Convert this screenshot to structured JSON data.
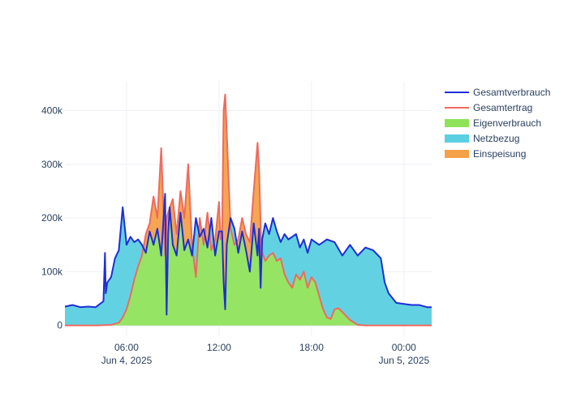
{
  "colors": {
    "gesamtverbrauch": "#1f2ed6",
    "gesamtertrag": "#ef6a5e",
    "eigenverbrauch": "#8fe35b",
    "netzbezug": "#5ad0e2",
    "einspeisung": "#f4a14a",
    "grid": "#eef0f5",
    "zero_line": "#d9dde6"
  },
  "chart_data": {
    "type": "area",
    "x_ticks": [
      {
        "hour": 6,
        "label": "06:00",
        "sublabel": "Jun 4, 2025"
      },
      {
        "hour": 12,
        "label": "12:00",
        "sublabel": ""
      },
      {
        "hour": 18,
        "label": "18:00",
        "sublabel": ""
      },
      {
        "hour": 24,
        "label": "00:00",
        "sublabel": "Jun 5, 2025"
      }
    ],
    "xlim_hours": [
      2,
      25.8
    ],
    "y_ticks": [
      {
        "value": 0,
        "label": "0"
      },
      {
        "value": 100000,
        "label": "100k"
      },
      {
        "value": 200000,
        "label": "200k"
      },
      {
        "value": 300000,
        "label": "300k"
      },
      {
        "value": 400000,
        "label": "400k"
      }
    ],
    "ylim": [
      -20000,
      455000
    ],
    "legend": [
      {
        "name": "Gesamtverbrauch",
        "kind": "line",
        "color_key": "gesamtverbrauch"
      },
      {
        "name": "Gesamtertrag",
        "kind": "line",
        "color_key": "gesamtertrag"
      },
      {
        "name": "Eigenverbrauch",
        "kind": "fill",
        "color_key": "eigenverbrauch"
      },
      {
        "name": "Netzbezug",
        "kind": "fill",
        "color_key": "netzbezug"
      },
      {
        "name": "Einspeisung",
        "kind": "fill",
        "color_key": "einspeisung"
      }
    ],
    "series": [
      {
        "name": "Gesamtverbrauch",
        "x": [
          2.0,
          2.5,
          3.0,
          3.5,
          4.0,
          4.5,
          4.6,
          4.65,
          4.75,
          5.0,
          5.25,
          5.5,
          5.75,
          6.0,
          6.25,
          6.5,
          6.75,
          7.0,
          7.25,
          7.5,
          7.75,
          8.0,
          8.25,
          8.5,
          8.6,
          8.7,
          8.8,
          9.0,
          9.25,
          9.5,
          9.75,
          10.0,
          10.25,
          10.5,
          10.75,
          11.0,
          11.25,
          11.5,
          11.75,
          12.0,
          12.2,
          12.3,
          12.4,
          12.5,
          12.75,
          13.0,
          13.25,
          13.5,
          13.75,
          14.0,
          14.25,
          14.5,
          14.6,
          14.7,
          14.8,
          15.0,
          15.25,
          15.5,
          15.75,
          16.0,
          16.25,
          16.5,
          16.75,
          17.0,
          17.25,
          17.5,
          17.75,
          18.0,
          18.5,
          19.0,
          19.5,
          20.0,
          20.5,
          21.0,
          21.5,
          22.0,
          22.5,
          22.75,
          23.0,
          23.5,
          24.0,
          24.5,
          25.0,
          25.5,
          25.8
        ],
        "y": [
          35000,
          38000,
          34000,
          35000,
          34000,
          45000,
          135000,
          60000,
          80000,
          90000,
          125000,
          140000,
          220000,
          150000,
          165000,
          155000,
          160000,
          150000,
          135000,
          175000,
          150000,
          180000,
          130000,
          245000,
          20000,
          170000,
          220000,
          150000,
          130000,
          210000,
          140000,
          160000,
          130000,
          200000,
          165000,
          180000,
          145000,
          200000,
          130000,
          175000,
          175000,
          80000,
          30000,
          150000,
          200000,
          180000,
          135000,
          175000,
          140000,
          100000,
          190000,
          130000,
          180000,
          70000,
          160000,
          190000,
          170000,
          200000,
          175000,
          155000,
          170000,
          160000,
          165000,
          170000,
          145000,
          160000,
          135000,
          160000,
          150000,
          160000,
          155000,
          130000,
          150000,
          130000,
          145000,
          140000,
          125000,
          80000,
          60000,
          42000,
          40000,
          38000,
          38000,
          34000,
          34000
        ],
        "color_key": "gesamtverbrauch",
        "kind": "line"
      },
      {
        "name": "Gesamtertrag",
        "x": [
          2.0,
          3.0,
          4.0,
          5.0,
          5.5,
          5.75,
          6.0,
          6.25,
          6.5,
          6.75,
          7.0,
          7.25,
          7.5,
          7.75,
          8.0,
          8.25,
          8.5,
          8.6,
          8.75,
          9.0,
          9.25,
          9.5,
          9.75,
          10.0,
          10.25,
          10.5,
          10.75,
          11.0,
          11.25,
          11.5,
          11.75,
          12.0,
          12.1,
          12.2,
          12.3,
          12.4,
          12.5,
          12.75,
          13.0,
          13.25,
          13.5,
          13.75,
          14.0,
          14.25,
          14.5,
          14.6,
          14.75,
          15.0,
          15.25,
          15.5,
          15.75,
          16.0,
          16.25,
          16.5,
          16.75,
          17.0,
          17.25,
          17.5,
          17.75,
          18.0,
          18.25,
          18.5,
          18.75,
          19.0,
          19.25,
          19.5,
          19.75,
          20.0,
          20.5,
          21.0,
          21.5,
          22.0,
          23.0,
          24.0,
          25.0,
          25.8
        ],
        "y": [
          0,
          0,
          0,
          1000,
          5000,
          15000,
          30000,
          55000,
          85000,
          110000,
          130000,
          170000,
          190000,
          240000,
          200000,
          330000,
          130000,
          200000,
          215000,
          235000,
          170000,
          250000,
          200000,
          300000,
          150000,
          90000,
          200000,
          150000,
          210000,
          140000,
          160000,
          230000,
          160000,
          175000,
          400000,
          430000,
          360000,
          180000,
          150000,
          160000,
          200000,
          170000,
          155000,
          250000,
          340000,
          290000,
          140000,
          120000,
          130000,
          135000,
          120000,
          125000,
          95000,
          80000,
          70000,
          95000,
          85000,
          100000,
          70000,
          90000,
          80000,
          55000,
          30000,
          15000,
          12000,
          30000,
          32000,
          25000,
          10000,
          1000,
          0,
          0,
          0,
          0,
          0,
          0
        ],
        "color_key": "gesamtertrag",
        "kind": "line"
      }
    ],
    "fills": [
      {
        "name": "Eigenverbrauch",
        "color_key": "eigenverbrauch",
        "rule": "min(Gesamtverbrauch, Gesamtertrag)"
      },
      {
        "name": "Netzbezug",
        "color_key": "netzbezug",
        "rule": "Gesamtverbrauch minus Gesamtertrag where positive"
      },
      {
        "name": "Einspeisung",
        "color_key": "einspeisung",
        "rule": "Gesamtertrag minus Gesamtverbrauch where positive"
      }
    ]
  }
}
